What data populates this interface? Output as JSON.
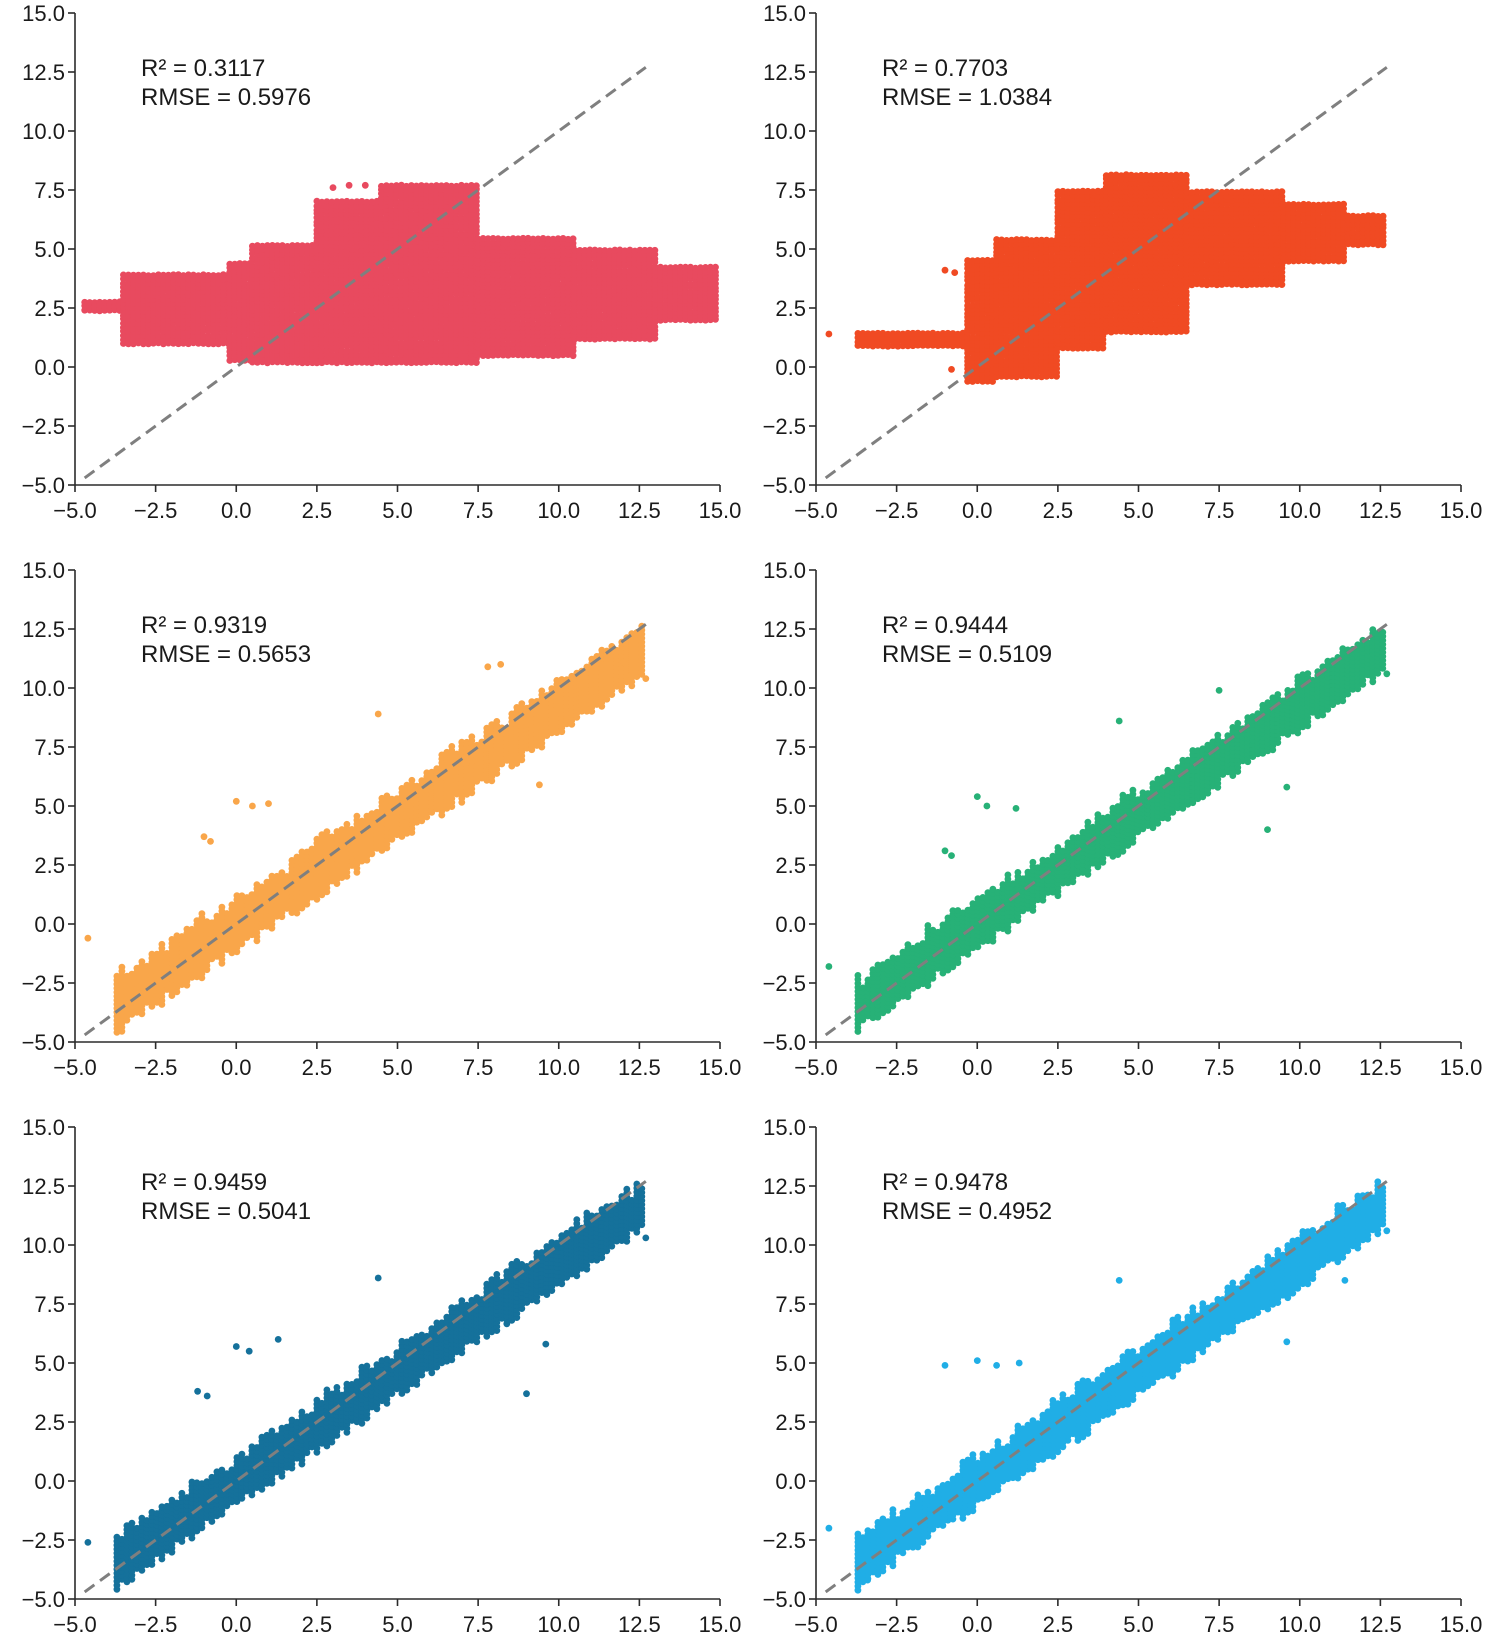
{
  "chart_data": [
    {
      "type": "scatter",
      "color": "#e84a5f",
      "annotation": [
        "R² = 0.3117",
        "RMSE = 0.5976"
      ],
      "xlim": [
        -5,
        15
      ],
      "ylim": [
        -5,
        15
      ],
      "xticks": [
        "−5.0",
        "−2.5",
        "0.0",
        "2.5",
        "5.0",
        "7.5",
        "10.0",
        "12.5",
        "15.0"
      ],
      "yticks": [
        "−5.0",
        "−2.5",
        "0.0",
        "2.5",
        "5.0",
        "7.5",
        "10.0",
        "12.5",
        "15.0"
      ],
      "identity_line": [
        [
          -4.7,
          -4.7
        ],
        [
          12.7,
          12.7
        ]
      ],
      "clusters": [
        {
          "x0": -4.7,
          "x1": -3.5,
          "ylo": 2.4,
          "yhi": 2.9
        },
        {
          "x0": -3.5,
          "x1": -0.2,
          "ylo": 1.0,
          "yhi": 4.0
        },
        {
          "x0": -0.2,
          "x1": 0.5,
          "ylo": 0.3,
          "yhi": 4.5
        },
        {
          "x0": 0.5,
          "x1": 2.5,
          "ylo": 0.2,
          "yhi": 5.2
        },
        {
          "x0": 2.5,
          "x1": 4.5,
          "ylo": 0.2,
          "yhi": 7.0
        },
        {
          "x0": 4.5,
          "x1": 7.5,
          "ylo": 0.2,
          "yhi": 7.7
        },
        {
          "x0": 7.5,
          "x1": 10.5,
          "ylo": 0.5,
          "yhi": 5.5
        },
        {
          "x0": 10.5,
          "x1": 13.0,
          "ylo": 1.2,
          "yhi": 5.0
        },
        {
          "x0": 13.0,
          "x1": 15.0,
          "ylo": 2.0,
          "yhi": 4.3
        }
      ],
      "outliers": [
        [
          3.0,
          7.6
        ],
        [
          3.5,
          7.7
        ],
        [
          4.0,
          7.7
        ]
      ]
    },
    {
      "type": "scatter",
      "color": "#f04a23",
      "annotation": [
        "R² = 0.7703",
        "RMSE = 1.0384"
      ],
      "xlim": [
        -5,
        15
      ],
      "ylim": [
        -5,
        15
      ],
      "xticks": [
        "−5.0",
        "−2.5",
        "0.0",
        "2.5",
        "5.0",
        "7.5",
        "10.0",
        "12.5",
        "15.0"
      ],
      "yticks": [
        "−5.0",
        "−2.5",
        "0.0",
        "2.5",
        "5.0",
        "7.5",
        "10.0",
        "12.5",
        "15.0"
      ],
      "identity_line": [
        [
          -4.7,
          -4.7
        ],
        [
          12.7,
          12.7
        ]
      ],
      "clusters": [
        {
          "x0": -3.7,
          "x1": -0.3,
          "ylo": 0.9,
          "yhi": 1.5
        },
        {
          "x0": -0.3,
          "x1": 0.6,
          "ylo": -0.6,
          "yhi": 4.5
        },
        {
          "x0": 0.6,
          "x1": 2.5,
          "ylo": -0.4,
          "yhi": 5.5
        },
        {
          "x0": 2.5,
          "x1": 4.0,
          "ylo": 0.8,
          "yhi": 7.5
        },
        {
          "x0": 4.0,
          "x1": 6.5,
          "ylo": 1.5,
          "yhi": 8.2
        },
        {
          "x0": 6.5,
          "x1": 9.5,
          "ylo": 3.5,
          "yhi": 7.5
        },
        {
          "x0": 9.5,
          "x1": 11.5,
          "ylo": 4.5,
          "yhi": 7.0
        },
        {
          "x0": 11.5,
          "x1": 12.7,
          "ylo": 5.2,
          "yhi": 6.5
        }
      ],
      "outliers": [
        [
          -4.6,
          1.4
        ],
        [
          -1.0,
          4.1
        ],
        [
          -0.7,
          4.0
        ],
        [
          -0.8,
          -0.1
        ]
      ]
    },
    {
      "type": "scatter",
      "color": "#f9a64a",
      "annotation": [
        "R² = 0.9319",
        "RMSE = 0.5653"
      ],
      "xlim": [
        -5,
        15
      ],
      "ylim": [
        -5,
        15
      ],
      "xticks": [
        "−5.0",
        "−2.5",
        "0.0",
        "2.5",
        "5.0",
        "7.5",
        "10.0",
        "12.5",
        "15.0"
      ],
      "yticks": [
        "−5.0",
        "−2.5",
        "0.0",
        "2.5",
        "5.0",
        "7.5",
        "10.0",
        "12.5",
        "15.0"
      ],
      "identity_line": [
        [
          -4.7,
          -4.7
        ],
        [
          12.7,
          12.7
        ]
      ],
      "band": {
        "x0": -3.7,
        "x1": 12.7,
        "slope": 0.92,
        "intercept": 0.0,
        "halfwidth": 1.1
      },
      "outliers": [
        [
          -4.6,
          -0.6
        ],
        [
          -1.0,
          3.7
        ],
        [
          -0.8,
          3.5
        ],
        [
          0.0,
          5.2
        ],
        [
          0.5,
          5.0
        ],
        [
          1.0,
          5.1
        ],
        [
          4.4,
          8.9
        ],
        [
          7.8,
          10.9
        ],
        [
          8.2,
          11.0
        ],
        [
          9.4,
          5.9
        ],
        [
          12.0,
          11.1
        ],
        [
          12.7,
          10.4
        ]
      ]
    },
    {
      "type": "scatter",
      "color": "#27b177",
      "annotation": [
        "R² = 0.9444",
        "RMSE = 0.5109"
      ],
      "xlim": [
        -5,
        15
      ],
      "ylim": [
        -5,
        15
      ],
      "xticks": [
        "−5.0",
        "−2.5",
        "0.0",
        "2.5",
        "5.0",
        "7.5",
        "10.0",
        "12.5",
        "15.0"
      ],
      "yticks": [
        "−5.0",
        "−2.5",
        "0.0",
        "2.5",
        "5.0",
        "7.5",
        "10.0",
        "12.5",
        "15.0"
      ],
      "identity_line": [
        [
          -4.7,
          -4.7
        ],
        [
          12.7,
          12.7
        ]
      ],
      "band": {
        "x0": -3.7,
        "x1": 12.7,
        "slope": 0.93,
        "intercept": 0.0,
        "halfwidth": 1.0
      },
      "outliers": [
        [
          -4.6,
          -1.8
        ],
        [
          -1.0,
          3.1
        ],
        [
          -0.8,
          2.9
        ],
        [
          0.0,
          5.4
        ],
        [
          0.3,
          5.0
        ],
        [
          1.2,
          4.9
        ],
        [
          4.4,
          8.6
        ],
        [
          7.5,
          9.9
        ],
        [
          9.0,
          4.0
        ],
        [
          9.6,
          5.8
        ],
        [
          12.7,
          10.6
        ]
      ]
    },
    {
      "type": "scatter",
      "color": "#15719b",
      "annotation": [
        "R² = 0.9459",
        "RMSE = 0.5041"
      ],
      "xlim": [
        -5,
        15
      ],
      "ylim": [
        -5,
        15
      ],
      "xticks": [
        "−5.0",
        "−2.5",
        "0.0",
        "2.5",
        "5.0",
        "7.5",
        "10.0",
        "12.5",
        "15.0"
      ],
      "yticks": [
        "−5.0",
        "−2.5",
        "0.0",
        "2.5",
        "5.0",
        "7.5",
        "10.0",
        "12.5",
        "15.0"
      ],
      "identity_line": [
        [
          -4.7,
          -4.7
        ],
        [
          12.7,
          12.7
        ]
      ],
      "band": {
        "x0": -3.7,
        "x1": 12.7,
        "slope": 0.93,
        "intercept": 0.0,
        "halfwidth": 1.0
      },
      "outliers": [
        [
          -4.6,
          -2.6
        ],
        [
          -1.2,
          3.8
        ],
        [
          -0.9,
          3.6
        ],
        [
          0.0,
          5.7
        ],
        [
          0.4,
          5.5
        ],
        [
          1.3,
          6.0
        ],
        [
          4.4,
          8.6
        ],
        [
          9.0,
          3.7
        ],
        [
          9.6,
          5.8
        ],
        [
          12.7,
          10.3
        ]
      ]
    },
    {
      "type": "scatter",
      "color": "#20aee6",
      "annotation": [
        "R² = 0.9478",
        "RMSE = 0.4952"
      ],
      "xlim": [
        -5,
        15
      ],
      "ylim": [
        -5,
        15
      ],
      "xticks": [
        "−5.0",
        "−2.5",
        "0.0",
        "2.5",
        "5.0",
        "7.5",
        "10.0",
        "12.5",
        "15.0"
      ],
      "yticks": [
        "−5.0",
        "−2.5",
        "0.0",
        "2.5",
        "5.0",
        "7.5",
        "10.0",
        "12.5",
        "15.0"
      ],
      "identity_line": [
        [
          -4.7,
          -4.7
        ],
        [
          12.7,
          12.7
        ]
      ],
      "band": {
        "x0": -3.7,
        "x1": 12.7,
        "slope": 0.93,
        "intercept": 0.0,
        "halfwidth": 1.0
      },
      "outliers": [
        [
          -4.6,
          -2.0
        ],
        [
          -3.4,
          -4.2
        ],
        [
          -1.0,
          4.9
        ],
        [
          0.0,
          5.1
        ],
        [
          0.6,
          4.9
        ],
        [
          1.3,
          5.0
        ],
        [
          4.4,
          8.5
        ],
        [
          9.6,
          5.9
        ],
        [
          11.4,
          8.5
        ],
        [
          12.7,
          10.6
        ]
      ]
    }
  ]
}
